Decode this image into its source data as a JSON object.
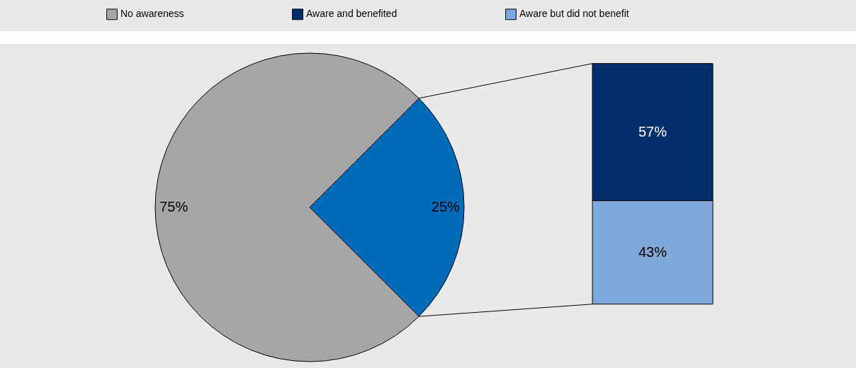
{
  "chart_data": [
    {
      "type": "pie",
      "categories": [
        "No awareness",
        null
      ],
      "values": [
        75,
        25
      ],
      "colors": [
        "#a6a6a6",
        "#006bb6"
      ],
      "value_labels": [
        "75%",
        "25%"
      ],
      "legend": "top"
    },
    {
      "type": "bar",
      "stacked": true,
      "categories": [
        null
      ],
      "ylim": [
        0,
        100
      ],
      "tick_labels": false,
      "legend": "top left",
      "series": [
        {
          "name": "Aware but did not benefit",
          "color": "#7fa8d9",
          "values": [
            43
          ],
          "value_labels": [
            "43%"
          ]
        },
        {
          "name": "Aware and benefited",
          "color": "#002f6c",
          "values": [
            57
          ],
          "value_labels": [
            "57%"
          ]
        }
      ]
    }
  ]
}
